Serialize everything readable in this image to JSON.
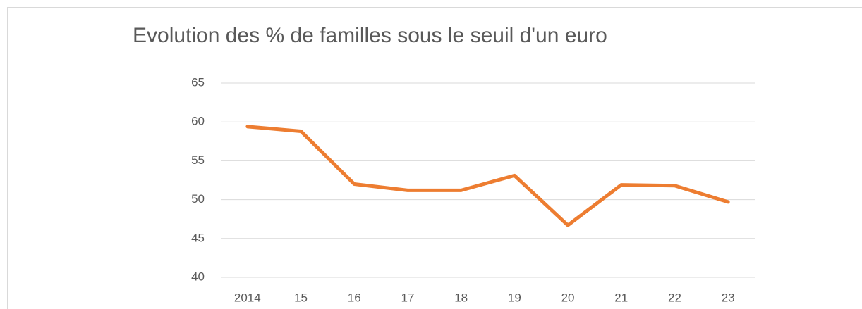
{
  "chart_data": {
    "type": "line",
    "title": "Evolution des % de familles sous le seuil d'un euro",
    "categories": [
      "2014",
      "15",
      "16",
      "17",
      "18",
      "19",
      "20",
      "21",
      "22",
      "23"
    ],
    "values": [
      59.4,
      58.8,
      52.0,
      51.2,
      51.2,
      53.1,
      46.7,
      51.9,
      51.8,
      49.7
    ],
    "color": "#ed7d31",
    "ylim": [
      40,
      65
    ],
    "yticks": [
      40,
      45,
      50,
      55,
      60,
      65
    ],
    "grid": true
  }
}
